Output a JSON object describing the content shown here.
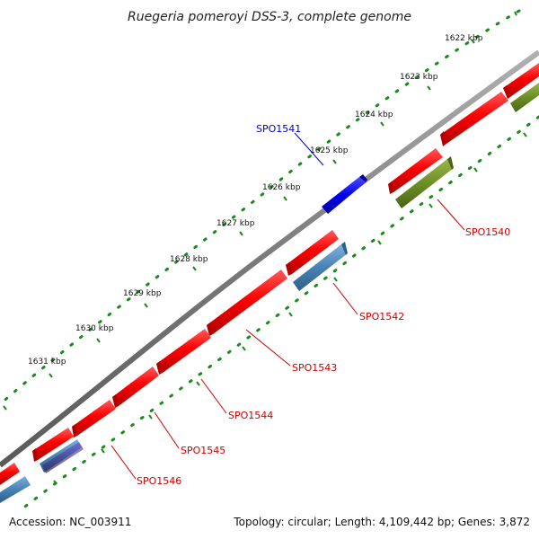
{
  "title": "Ruegeria pomeroyi DSS-3, complete genome",
  "footer": {
    "accession": "Accession: NC_003911",
    "summary": "Topology: circular; Length: 4,109,442 bp; Genes: 3,872"
  },
  "colors": {
    "backbone": "#808080",
    "tick": "#1a8a1a",
    "label_blue": "#0000cc",
    "label_red": "#cc0000"
  },
  "ticks": [
    {
      "label": "1622 kbp"
    },
    {
      "label": "1623 kbp"
    },
    {
      "label": "1624 kbp"
    },
    {
      "label": "1625 kbp"
    },
    {
      "label": "1626 kbp"
    },
    {
      "label": "1627 kbp"
    },
    {
      "label": "1628 kbp"
    },
    {
      "label": "1629 kbp"
    },
    {
      "label": "1630 kbp"
    },
    {
      "label": "1631 kbp"
    }
  ],
  "gene_labels": [
    {
      "name": "SPO1541",
      "color": "#0000cc"
    },
    {
      "name": "SPO1540",
      "color": "#cc0000"
    },
    {
      "name": "SPO1542",
      "color": "#cc0000"
    },
    {
      "name": "SPO1543",
      "color": "#cc0000"
    },
    {
      "name": "SPO1544",
      "color": "#cc0000"
    },
    {
      "name": "SPO1545",
      "color": "#cc0000"
    },
    {
      "name": "SPO1546",
      "color": "#cc0000"
    }
  ]
}
